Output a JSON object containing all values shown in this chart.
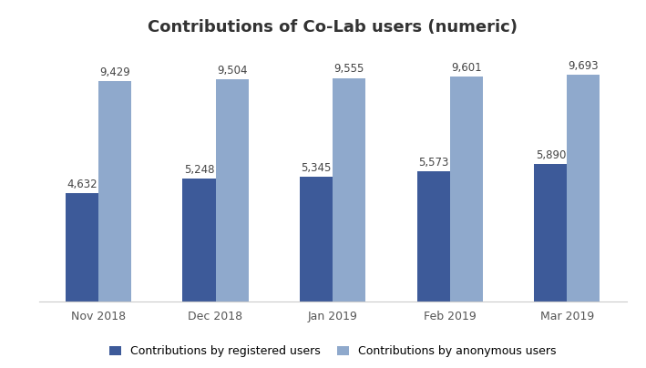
{
  "title": "Contributions of Co-Lab users (numeric)",
  "categories": [
    "Nov 2018",
    "Dec 2018",
    "Jan 2019",
    "Feb 2019",
    "Mar 2019"
  ],
  "registered_values": [
    4632,
    5248,
    5345,
    5573,
    5890
  ],
  "anonymous_values": [
    9429,
    9504,
    9555,
    9601,
    9693
  ],
  "registered_color": "#3D5A99",
  "anonymous_color": "#8FA9CC",
  "legend_registered": "Contributions by registered users",
  "legend_anonymous": "Contributions by anonymous users",
  "bar_width": 0.28,
  "ylim": [
    0,
    11000
  ],
  "title_fontsize": 13,
  "tick_fontsize": 9,
  "legend_fontsize": 9,
  "value_fontsize": 8.5,
  "background_color": "#ffffff",
  "figure_color": "#ffffff"
}
